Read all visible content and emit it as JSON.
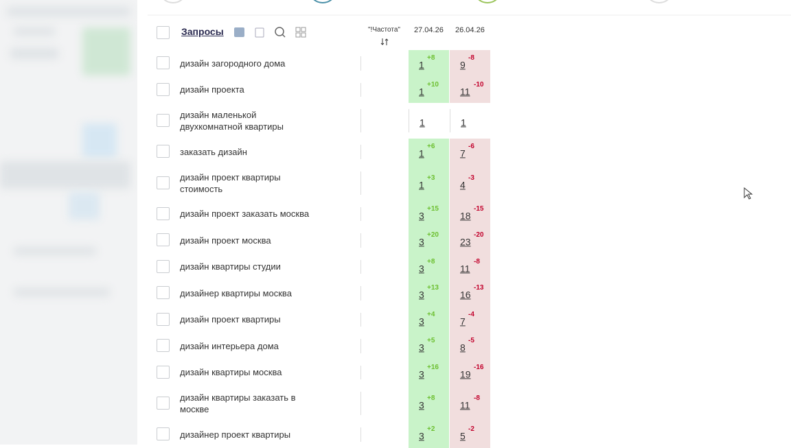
{
  "header": {
    "title": "Запросы",
    "frequency": "\"!Частота\"",
    "dates": [
      "27.04.26",
      "26.04.26"
    ]
  },
  "table": {
    "rows": [
      {
        "query": [
          "дизайн загородного дома"
        ],
        "cells": [
          {
            "pos": 1,
            "delta": "+8"
          },
          {
            "pos": 9,
            "delta": "-8"
          }
        ]
      },
      {
        "query": [
          "дизайн проекта"
        ],
        "cells": [
          {
            "pos": 1,
            "delta": "+10"
          },
          {
            "pos": 11,
            "delta": "-10"
          }
        ]
      },
      {
        "query": [
          "дизайн маленькой",
          "двухкомнатной квартиры"
        ],
        "cells": [
          {
            "pos": 1
          },
          {
            "pos": 1
          }
        ]
      },
      {
        "query": [
          "заказать дизайн"
        ],
        "cells": [
          {
            "pos": 1,
            "delta": "+6"
          },
          {
            "pos": 7,
            "delta": "-6"
          }
        ]
      },
      {
        "query": [
          "дизайн проект квартиры",
          "стоимость"
        ],
        "cells": [
          {
            "pos": 1,
            "delta": "+3"
          },
          {
            "pos": 4,
            "delta": "-3"
          }
        ]
      },
      {
        "query": [
          "дизайн проект заказать москва"
        ],
        "cells": [
          {
            "pos": 3,
            "delta": "+15"
          },
          {
            "pos": 18,
            "delta": "-15"
          }
        ]
      },
      {
        "query": [
          "дизайн проект москва"
        ],
        "cells": [
          {
            "pos": 3,
            "delta": "+20"
          },
          {
            "pos": 23,
            "delta": "-20"
          }
        ]
      },
      {
        "query": [
          "дизайн квартиры студии"
        ],
        "cells": [
          {
            "pos": 3,
            "delta": "+8"
          },
          {
            "pos": 11,
            "delta": "-8"
          }
        ]
      },
      {
        "query": [
          "дизайнер квартиры москва"
        ],
        "cells": [
          {
            "pos": 3,
            "delta": "+13"
          },
          {
            "pos": 16,
            "delta": "-13"
          }
        ]
      },
      {
        "query": [
          "дизайн проект квартиры"
        ],
        "cells": [
          {
            "pos": 3,
            "delta": "+4"
          },
          {
            "pos": 7,
            "delta": "-4"
          }
        ]
      },
      {
        "query": [
          "дизайн интерьера дома"
        ],
        "cells": [
          {
            "pos": 3,
            "delta": "+5"
          },
          {
            "pos": 8,
            "delta": "-5"
          }
        ]
      },
      {
        "query": [
          "дизайн квартиры москва"
        ],
        "cells": [
          {
            "pos": 3,
            "delta": "+16"
          },
          {
            "pos": 19,
            "delta": "-16"
          }
        ]
      },
      {
        "query": [
          "дизайн квартиры заказать в",
          "москве"
        ],
        "cells": [
          {
            "pos": 3,
            "delta": "+8"
          },
          {
            "pos": 11,
            "delta": "-8"
          }
        ]
      },
      {
        "query": [
          "дизайнер проект квартиры"
        ],
        "cells": [
          {
            "pos": 3,
            "delta": "+2"
          },
          {
            "pos": 5,
            "delta": "-2"
          }
        ]
      }
    ]
  }
}
